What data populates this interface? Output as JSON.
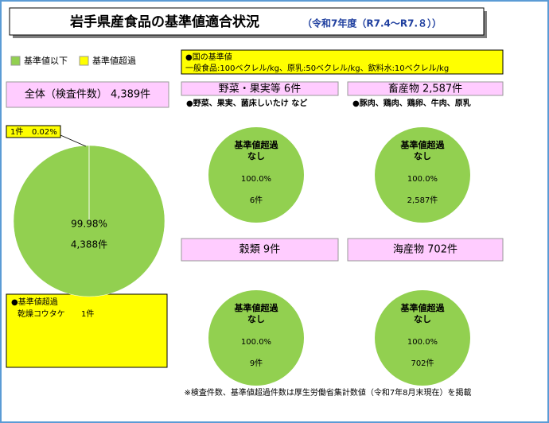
{
  "header": {
    "title": "岩手県産食品の基準値適合状況",
    "period": "（令和7年度（R7.4～R7.８））"
  },
  "standards": {
    "heading": "●国の基準値",
    "text": "一般食品:100ベクレル/kg、原乳:50ベクレル/kg、飲料水:10ベクレル/kg"
  },
  "exceedance": {
    "heading": "●基準値超過",
    "item": "乾燥コウタケ",
    "count": "1件"
  },
  "note": "※検査件数、基準値超過件数は厚生労働省集計数値（令和7年8月末現在）を掲載",
  "chart_data": [
    {
      "type": "pie",
      "title": "全体（検査件数） 4,389件",
      "categories": [
        "基準値以下",
        "基準値超過"
      ],
      "colors": [
        "#92d050",
        "#ffff00"
      ],
      "values": [
        99.98,
        0.02
      ],
      "value_labels": [
        "99.98%",
        "0.02%"
      ],
      "count_labels": [
        "4,388件",
        "1件"
      ]
    },
    {
      "type": "pie",
      "title": "野菜・果実等 6件",
      "subtitle": "●野菜、果実、菌床しいたけ など",
      "annotation": [
        "基準値超過",
        "なし"
      ],
      "categories": [
        "基準値以下"
      ],
      "colors": [
        "#92d050"
      ],
      "values": [
        100
      ],
      "value_labels": [
        "100.0%"
      ],
      "count_labels": [
        "6件"
      ]
    },
    {
      "type": "pie",
      "title": "畜産物 2,587件",
      "subtitle": "●豚肉、鶏肉、鶏卵、牛肉、原乳",
      "annotation": [
        "基準値超過",
        "なし"
      ],
      "categories": [
        "基準値以下"
      ],
      "colors": [
        "#92d050"
      ],
      "values": [
        100
      ],
      "value_labels": [
        "100.0%"
      ],
      "count_labels": [
        "2,587件"
      ]
    },
    {
      "type": "pie",
      "title": "穀類 9件",
      "annotation": [
        "基準値超過",
        "なし"
      ],
      "categories": [
        "基準値以下"
      ],
      "colors": [
        "#92d050"
      ],
      "values": [
        100
      ],
      "value_labels": [
        "100.0%"
      ],
      "count_labels": [
        "9件"
      ]
    },
    {
      "type": "pie",
      "title": "海産物 702件",
      "annotation": [
        "基準値超過",
        "なし"
      ],
      "categories": [
        "基準値以下"
      ],
      "colors": [
        "#92d050"
      ],
      "values": [
        100
      ],
      "value_labels": [
        "100.0%"
      ],
      "count_labels": [
        "702件"
      ]
    }
  ]
}
